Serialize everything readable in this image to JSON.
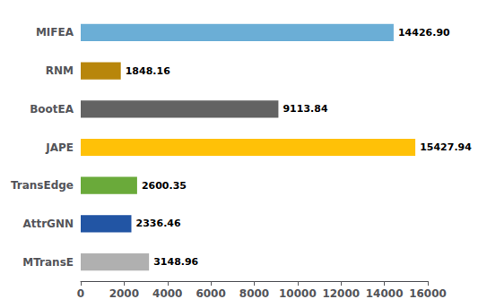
{
  "chart_data": {
    "type": "bar",
    "orientation": "horizontal",
    "categories": [
      "MIFEA",
      "RNM",
      "BootEA",
      "JAPE",
      "TransEdge",
      "AttrGNN",
      "MTransE"
    ],
    "values": [
      14426.9,
      1848.16,
      9113.84,
      15427.94,
      2600.35,
      2336.46,
      3148.96
    ],
    "value_labels": [
      "14426.90",
      "1848.16",
      "9113.84",
      "15427.94",
      "2600.35",
      "2336.46",
      "3148.96"
    ],
    "colors": [
      "#6baed6",
      "#b8860b",
      "#636363",
      "#ffc107",
      "#6aaa3a",
      "#2255a4",
      "#b0b0b0"
    ],
    "xlim": [
      0,
      16000
    ],
    "xticks": [
      0,
      2000,
      4000,
      6000,
      8000,
      10000,
      12000,
      14000,
      16000
    ],
    "grid": false,
    "data_labels": true
  }
}
